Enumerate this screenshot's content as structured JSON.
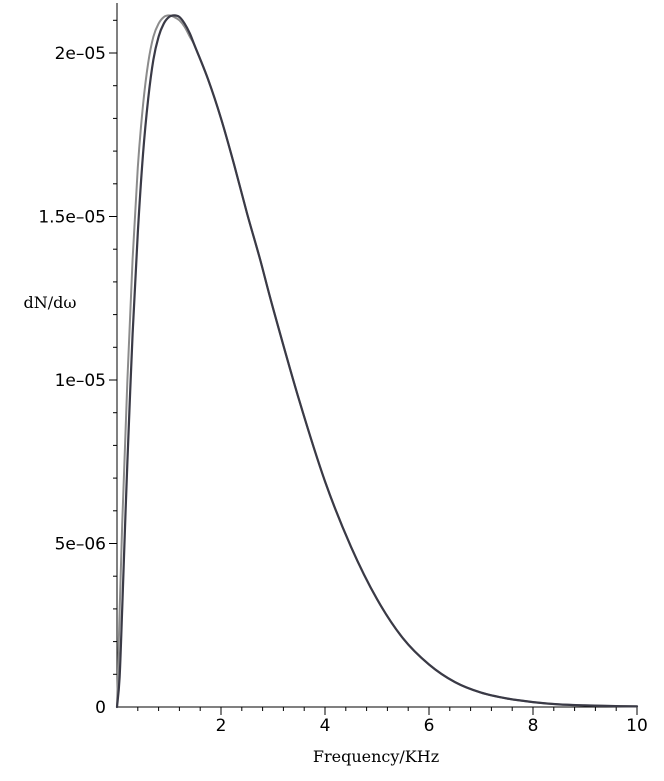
{
  "chart_data": {
    "type": "line",
    "title": "",
    "xlabel": "Frequency/KHz",
    "ylabel": "dN/dω",
    "xlim": [
      0,
      10
    ],
    "ylim": [
      0,
      2.15e-05
    ],
    "grid": false,
    "x_ticks": [
      {
        "value": 2,
        "label": "2"
      },
      {
        "value": 4,
        "label": "4"
      },
      {
        "value": 6,
        "label": "6"
      },
      {
        "value": 8,
        "label": "8"
      },
      {
        "value": 10,
        "label": "10"
      }
    ],
    "y_ticks": [
      {
        "value": 0,
        "label": "0"
      },
      {
        "value": 5e-06,
        "label": "5e–06"
      },
      {
        "value": 1e-05,
        "label": "1e–05"
      },
      {
        "value": 1.5e-05,
        "label": "1.5e–05"
      },
      {
        "value": 2e-05,
        "label": "2e–05"
      }
    ],
    "series": [
      {
        "color": "#8c8c8c",
        "x": [
          0,
          0.1,
          0.2,
          0.3,
          0.4,
          0.5,
          0.6,
          0.7,
          0.8,
          0.9,
          1.0,
          1.1,
          1.2,
          1.3,
          1.4,
          1.5,
          1.75,
          2.0,
          2.25,
          2.5,
          2.75,
          3.0,
          3.5,
          4.0,
          4.5,
          5.0,
          5.5,
          6.0,
          6.5,
          7.0,
          7.5,
          8.0,
          8.5,
          9.0,
          9.5,
          10.0
        ],
        "y": [
          0,
          5.6e-06,
          1e-05,
          1.37e-05,
          1.65e-05,
          1.84e-05,
          1.97e-05,
          2.05e-05,
          2.09e-05,
          2.11e-05,
          2.115e-05,
          2.11e-05,
          2.1e-05,
          2.08e-05,
          2.05e-05,
          2.02e-05,
          1.92e-05,
          1.8e-05,
          1.66e-05,
          1.51e-05,
          1.37e-05,
          1.22e-05,
          9.4e-06,
          6.9e-06,
          4.9e-06,
          3.3e-06,
          2.1e-06,
          1.3e-06,
          7.6e-07,
          4.4e-07,
          2.6e-07,
          1.5e-07,
          8e-08,
          5e-08,
          3e-08,
          2e-08
        ]
      },
      {
        "color": "#3a3a46",
        "x": [
          0,
          0.05,
          0.1,
          0.15,
          0.2,
          0.3,
          0.4,
          0.5,
          0.6,
          0.7,
          0.8,
          0.9,
          1.0,
          1.1,
          1.2,
          1.3,
          1.4,
          1.5,
          1.75,
          2.0,
          2.25,
          2.5,
          2.75,
          3.0,
          3.5,
          4.0,
          4.5,
          5.0,
          5.5,
          6.0,
          6.5,
          7.0,
          7.5,
          8.0,
          8.5,
          9.0,
          9.5,
          10.0
        ],
        "y": [
          0,
          9e-07,
          3e-06,
          5.3e-06,
          7.5e-06,
          1.14e-05,
          1.45e-05,
          1.69e-05,
          1.86e-05,
          1.98e-05,
          2.05e-05,
          2.09e-05,
          2.11e-05,
          2.115e-05,
          2.11e-05,
          2.09e-05,
          2.06e-05,
          2.02e-05,
          1.92e-05,
          1.8e-05,
          1.66e-05,
          1.51e-05,
          1.37e-05,
          1.22e-05,
          9.4e-06,
          6.9e-06,
          4.9e-06,
          3.3e-06,
          2.1e-06,
          1.3e-06,
          7.6e-07,
          4.4e-07,
          2.6e-07,
          1.5e-07,
          8e-08,
          5e-08,
          3e-08,
          2e-08
        ]
      }
    ]
  }
}
